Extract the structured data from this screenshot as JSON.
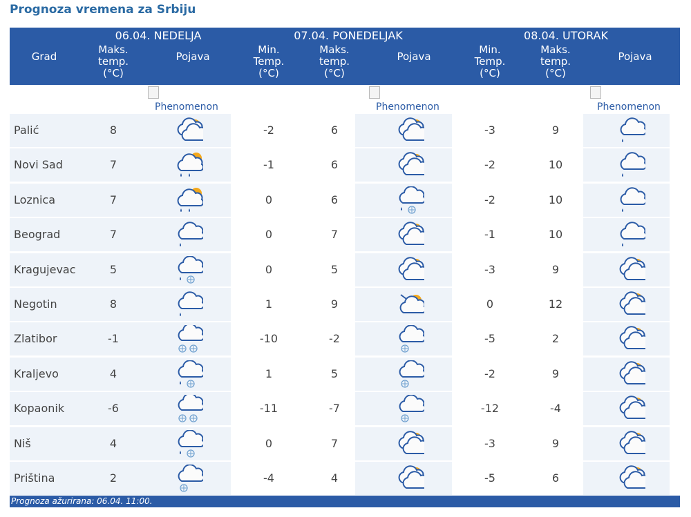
{
  "title": "Prognoza vremena za Srbiju",
  "header": {
    "city_label": "Grad",
    "days": [
      {
        "label": "06.04. NEDELJA",
        "max_label": "Maks. temp. (°C)",
        "phen_label": "Pojava"
      },
      {
        "label": "07.04. PONEDELJAK",
        "min_label": "Min. Temp. (°C)",
        "max_label": "Maks. temp. (°C)",
        "phen_label": "Pojava"
      },
      {
        "label": "08.04. UTORAK",
        "min_label": "Min. Temp. (°C)",
        "max_label": "Maks. temp. (°C)",
        "phen_label": "Pojava"
      }
    ],
    "max1": [
      "Maks.",
      "temp.",
      "(°C)"
    ],
    "min": [
      "Min.",
      "Temp.",
      "(°C)"
    ],
    "max": [
      "Maks.",
      "temp.",
      "(°C)"
    ]
  },
  "phenomenon_alt": "Phenomenon",
  "rows": [
    {
      "city": "Palić",
      "d1_max": "8",
      "d1_icon": "partly-cloudy-icon",
      "d2_min": "-2",
      "d2_max": "6",
      "d2_icon": "partly-cloudy-icon",
      "d3_min": "-3",
      "d3_max": "9",
      "d3_icon": "cloudy-rain-icon"
    },
    {
      "city": "Novi Sad",
      "d1_max": "7",
      "d1_icon": "partly-cloudy-rain-icon",
      "d2_min": "-1",
      "d2_max": "6",
      "d2_icon": "partly-cloudy-icon",
      "d3_min": "-2",
      "d3_max": "10",
      "d3_icon": "cloudy-rain-icon"
    },
    {
      "city": "Loznica",
      "d1_max": "7",
      "d1_icon": "partly-cloudy-rain-icon",
      "d2_min": "0",
      "d2_max": "6",
      "d2_icon": "cloudy-rain-snow-icon",
      "d3_min": "-2",
      "d3_max": "10",
      "d3_icon": "cloudy-rain-icon"
    },
    {
      "city": "Beograd",
      "d1_max": "7",
      "d1_icon": "cloudy-rain-icon",
      "d2_min": "0",
      "d2_max": "7",
      "d2_icon": "partly-cloudy-icon",
      "d3_min": "-1",
      "d3_max": "10",
      "d3_icon": "cloudy-rain-icon"
    },
    {
      "city": "Kragujevac",
      "d1_max": "5",
      "d1_icon": "cloudy-rain-snow-icon",
      "d2_min": "0",
      "d2_max": "5",
      "d2_icon": "partly-cloudy-icon",
      "d3_min": "-3",
      "d3_max": "9",
      "d3_icon": "partly-cloudy-icon"
    },
    {
      "city": "Negotin",
      "d1_max": "8",
      "d1_icon": "cloudy-rain-icon",
      "d2_min": "1",
      "d2_max": "9",
      "d2_icon": "partly-cloudy-wind-icon",
      "d3_min": "0",
      "d3_max": "12",
      "d3_icon": "partly-cloudy-icon"
    },
    {
      "city": "Zlatibor",
      "d1_max": "-1",
      "d1_icon": "cloudy-snow-icon",
      "d2_min": "-10",
      "d2_max": "-2",
      "d2_icon": "cloudy-light-snow-icon",
      "d3_min": "-5",
      "d3_max": "2",
      "d3_icon": "partly-cloudy-icon"
    },
    {
      "city": "Kraljevo",
      "d1_max": "4",
      "d1_icon": "cloudy-rain-snow-icon",
      "d2_min": "1",
      "d2_max": "5",
      "d2_icon": "cloudy-light-snow-icon",
      "d3_min": "-2",
      "d3_max": "9",
      "d3_icon": "partly-cloudy-icon"
    },
    {
      "city": "Kopaonik",
      "d1_max": "-6",
      "d1_icon": "cloudy-snow-icon",
      "d2_min": "-11",
      "d2_max": "-7",
      "d2_icon": "cloudy-light-snow-icon",
      "d3_min": "-12",
      "d3_max": "-4",
      "d3_icon": "partly-cloudy-icon"
    },
    {
      "city": "Niš",
      "d1_max": "4",
      "d1_icon": "cloudy-rain-snow-icon",
      "d2_min": "0",
      "d2_max": "7",
      "d2_icon": "partly-cloudy-icon",
      "d3_min": "-3",
      "d3_max": "9",
      "d3_icon": "partly-cloudy-icon"
    },
    {
      "city": "Priština",
      "d1_max": "2",
      "d1_icon": "cloudy-light-snow-icon",
      "d2_min": "-4",
      "d2_max": "4",
      "d2_icon": "partly-cloudy-icon",
      "d3_min": "-5",
      "d3_max": "6",
      "d3_icon": "partly-cloudy-icon"
    }
  ],
  "footer": "Prognoza ažurirana:  06.04. 11:00.",
  "colors": {
    "header_bg": "#2b5ba6",
    "title": "#2a6aa3",
    "row_shade": "#eef3f9"
  }
}
